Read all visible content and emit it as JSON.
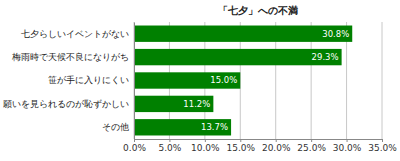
{
  "chart_data": {
    "type": "bar",
    "title": "「七夕」への不満",
    "orientation": "horizontal",
    "categories": [
      "七夕らしいイベントがない",
      "梅雨時で天候不良になりがち",
      "笹が手に入りにくい",
      "願いを見られるのが恥ずかしい",
      "その他"
    ],
    "values": [
      30.8,
      29.3,
      15.0,
      11.2,
      13.7
    ],
    "value_labels": [
      "30.8%",
      "29.3%",
      "15.0%",
      "11.2%",
      "13.7%"
    ],
    "data_labels": true,
    "color": "#008000",
    "xlim": [
      0,
      35
    ],
    "xticks": [
      {
        "value": 0,
        "label": "0.0%"
      },
      {
        "value": 5,
        "label": "5.0%"
      },
      {
        "value": 10,
        "label": "10.0%"
      },
      {
        "value": 15,
        "label": "15.0%"
      },
      {
        "value": 20,
        "label": "20.0%"
      },
      {
        "value": 25,
        "label": "25.0%"
      },
      {
        "value": 30,
        "label": "30.0%"
      },
      {
        "value": 35,
        "label": "35.0%"
      }
    ],
    "grid": true
  }
}
